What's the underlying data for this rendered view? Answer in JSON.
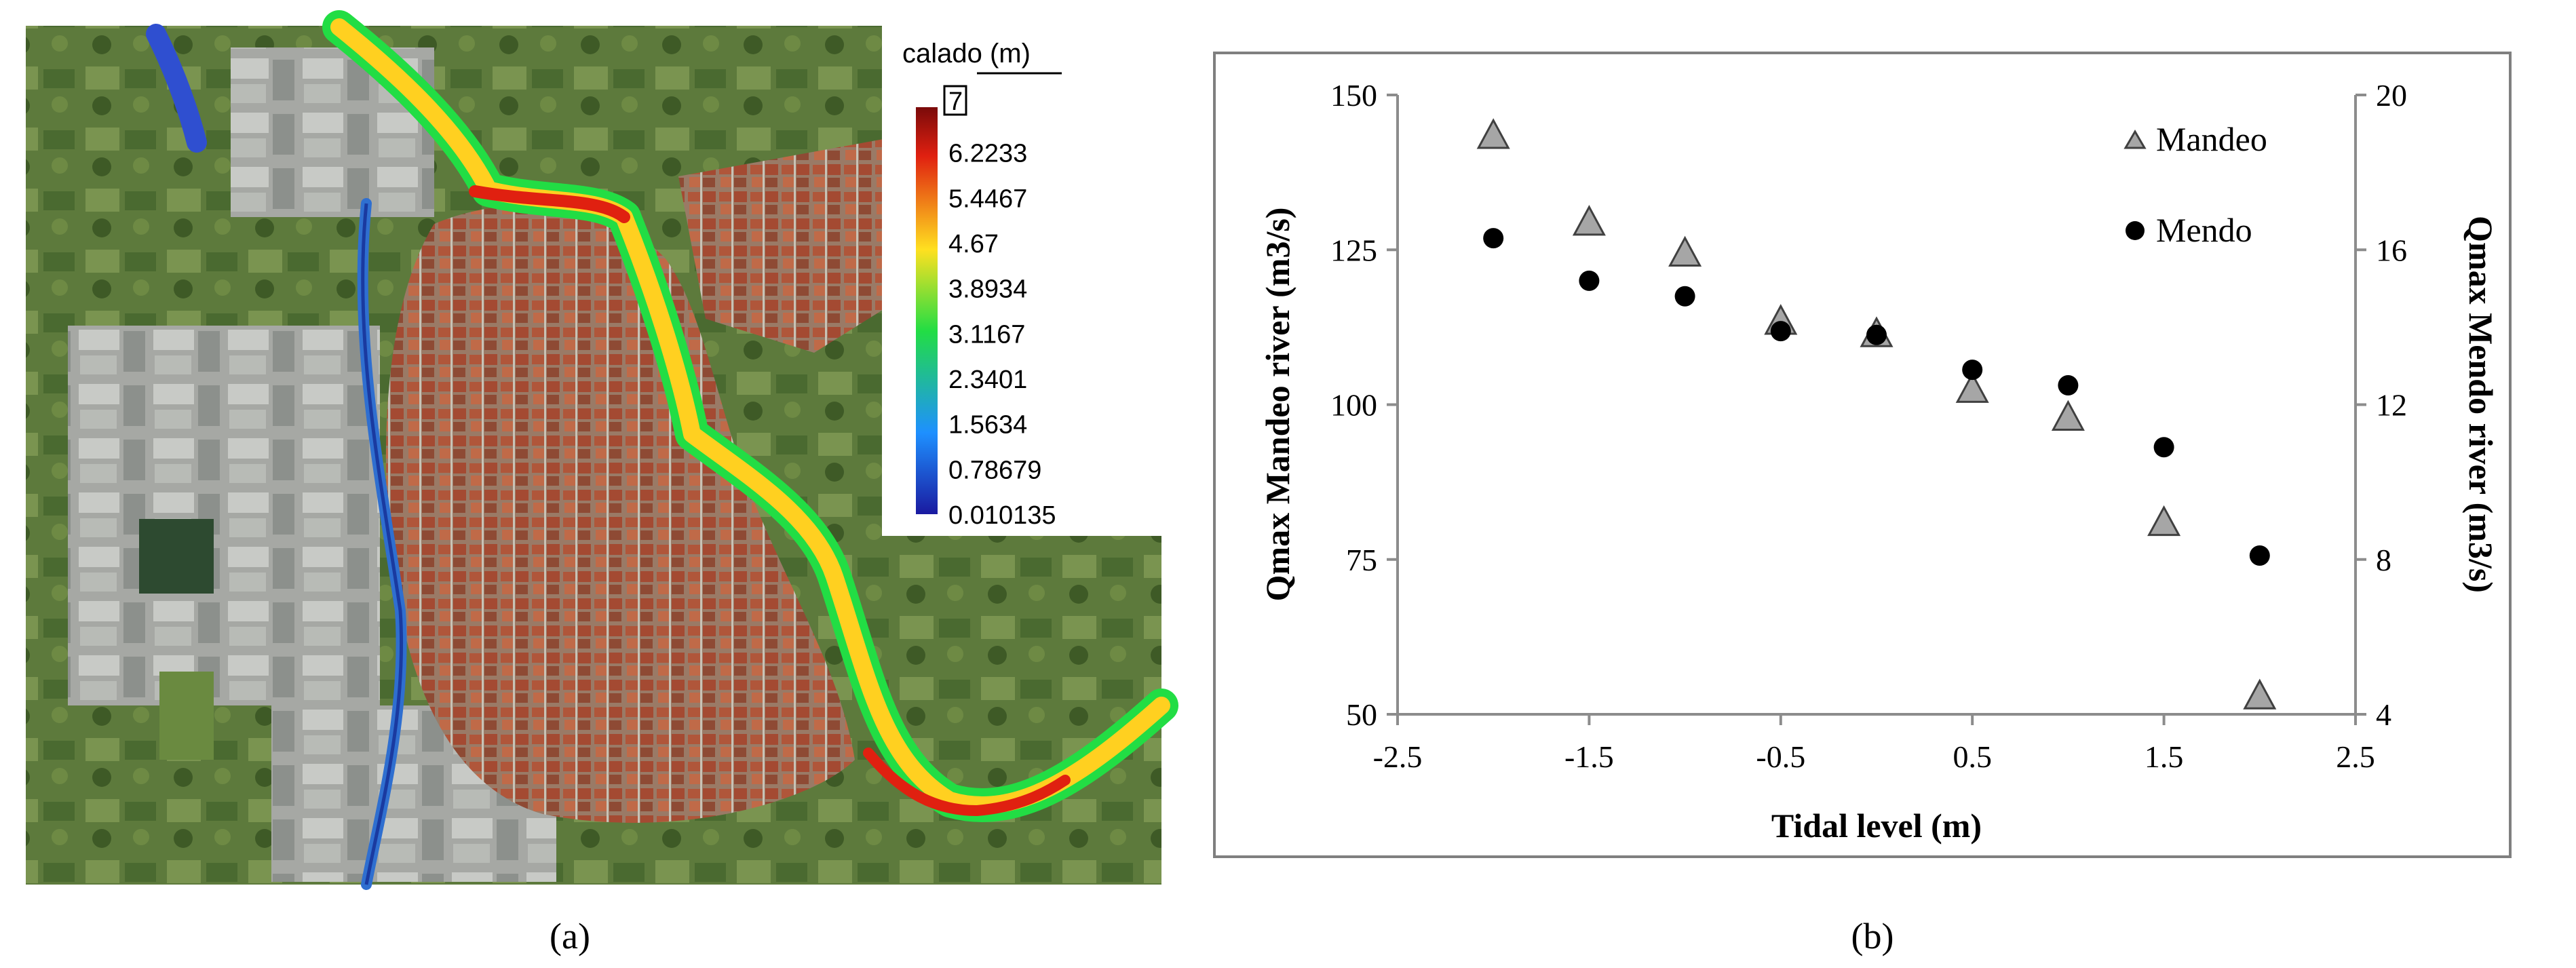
{
  "panel_a": {
    "caption": "(a)",
    "legend": {
      "title": "calado (m)",
      "max_label": "7",
      "ticks": [
        "6.2233",
        "5.4467",
        "4.67",
        "3.8934",
        "3.1167",
        "2.3401",
        "1.5634",
        "0.78679",
        "0.010135"
      ]
    },
    "colors": {
      "low": "#1a1aa0",
      "mid_low": "#1e90ff",
      "mid": "#22dd44",
      "mid_high": "#ffe020",
      "high": "#e02010",
      "top": "#7a0a0a"
    }
  },
  "panel_b": {
    "caption": "(b)"
  },
  "chart_data": {
    "type": "scatter",
    "xlabel": "Tidal level (m)",
    "ylabel": "Qmax Mandeo river (m3/s)",
    "y2label": "Qmax Mendo river (m3/s)",
    "xlim": [
      -2.5,
      2.5
    ],
    "ylim": [
      50,
      150
    ],
    "y2lim": [
      4,
      20
    ],
    "xticks": [
      "-2.5",
      "-1.5",
      "-0.5",
      "0.5",
      "1.5",
      "2.5"
    ],
    "yticks": [
      "150",
      "125",
      "100",
      "75",
      "50"
    ],
    "y2ticks": [
      "20",
      "16",
      "12",
      "8",
      "4"
    ],
    "grid": false,
    "legend_position": "top-right",
    "series": [
      {
        "name": "Mandeo",
        "marker": "triangle",
        "axis": "left",
        "color": "#a6a6a6",
        "points": [
          {
            "x": -2.0,
            "y": 143.5
          },
          {
            "x": -1.5,
            "y": 129.5
          },
          {
            "x": -1.0,
            "y": 124.5
          },
          {
            "x": -0.5,
            "y": 113.5
          },
          {
            "x": 0.0,
            "y": 111.5
          },
          {
            "x": 0.5,
            "y": 102.5
          },
          {
            "x": 1.0,
            "y": 98.0
          },
          {
            "x": 1.5,
            "y": 81.0
          },
          {
            "x": 2.0,
            "y": 53.0
          }
        ]
      },
      {
        "name": "Mendo",
        "marker": "circle",
        "axis": "right",
        "color": "#000000",
        "points": [
          {
            "x": -2.0,
            "y": 16.3
          },
          {
            "x": -1.5,
            "y": 15.2
          },
          {
            "x": -1.0,
            "y": 14.8
          },
          {
            "x": -0.5,
            "y": 13.9
          },
          {
            "x": 0.0,
            "y": 13.8
          },
          {
            "x": 0.5,
            "y": 12.9
          },
          {
            "x": 1.0,
            "y": 12.5
          },
          {
            "x": 1.5,
            "y": 10.9
          },
          {
            "x": 2.0,
            "y": 8.1
          }
        ]
      }
    ]
  }
}
